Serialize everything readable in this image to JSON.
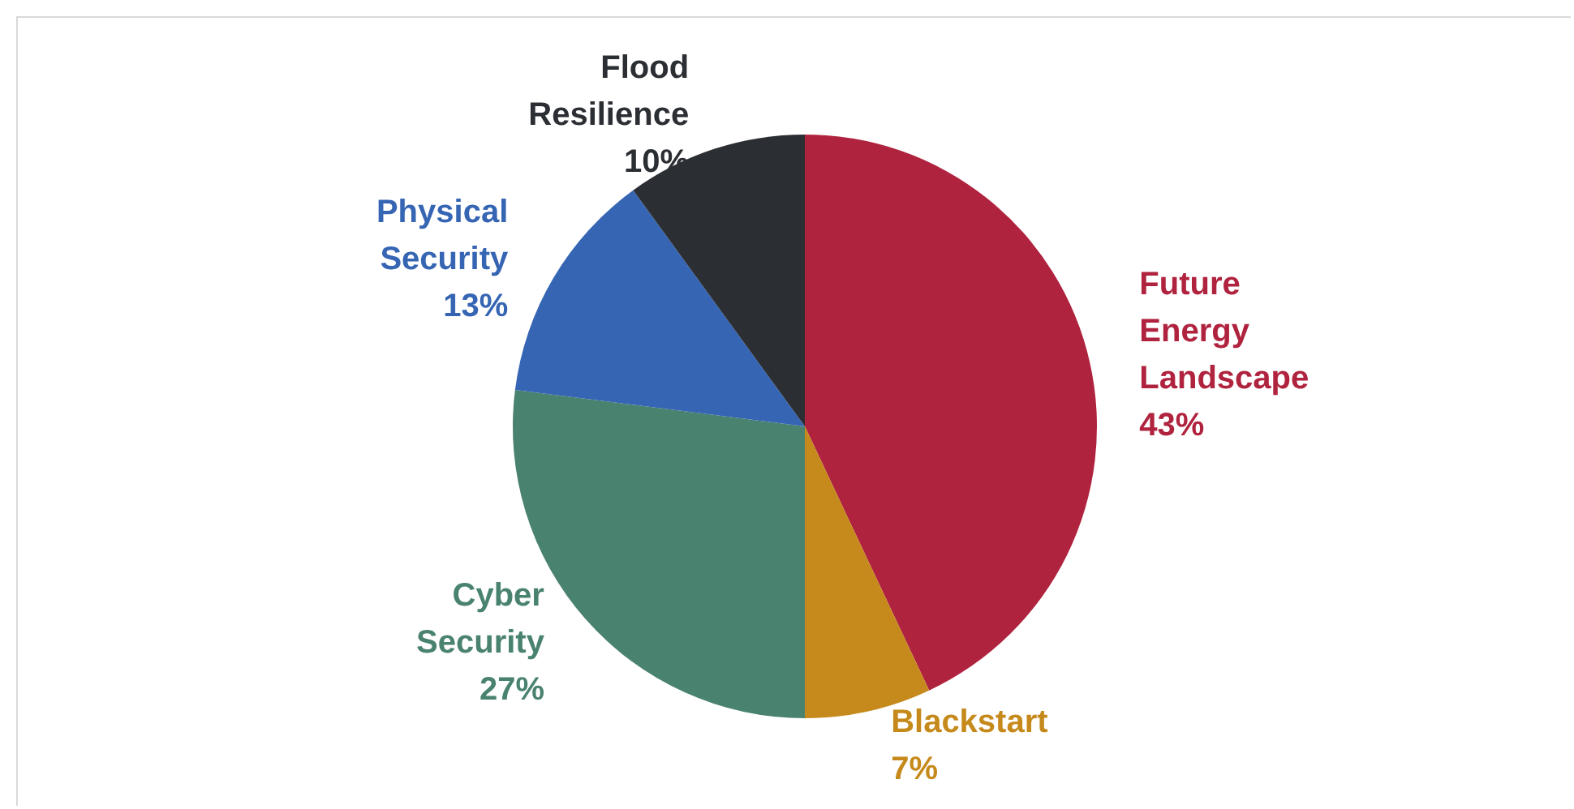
{
  "chart_data": {
    "type": "pie",
    "categories": [
      "Future Energy Landscape",
      "Blackstart",
      "Cyber Security",
      "Physical Security",
      "Flood Resilience"
    ],
    "values": [
      43,
      7,
      27,
      13,
      10
    ],
    "colors": [
      "#b0233e",
      "#c68a1c",
      "#4a8270",
      "#3565b3",
      "#2b2e33"
    ],
    "value_labels": [
      "43%",
      "7%",
      "27%",
      "13%",
      "10%"
    ],
    "legend": false
  }
}
